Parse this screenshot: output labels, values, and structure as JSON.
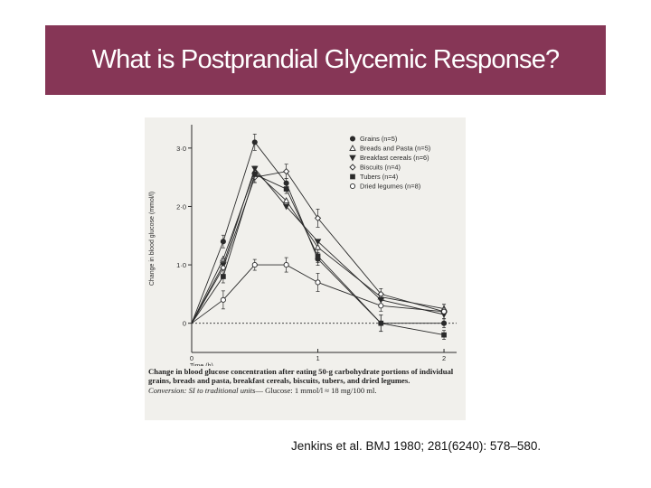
{
  "slide": {
    "title": "What is Postprandial Glycemic Response?",
    "citation": "Jenkins et al. BMJ 1980; 281(6240): 578–580."
  },
  "figure": {
    "caption": "Change in blood glucose concentration after eating 50-g carbohydrate portions of individual grains, breads and pasta, breakfast cereals, biscuits, tubers, and dried legumes.",
    "conversion_label": "Conversion: SI to traditional units",
    "conversion_text": "— Glucose: 1 mmol/l ≈ 18 mg/100 ml."
  },
  "chart_data": {
    "type": "line",
    "title": "",
    "xlabel": "Time (h)",
    "ylabel": "Change in blood glucose (mmol/l)",
    "xlim": [
      0,
      2.1
    ],
    "ylim": [
      -0.5,
      3.4
    ],
    "x_ticks": [
      {
        "value": 0,
        "label": "0"
      },
      {
        "value": 1,
        "label": "1"
      },
      {
        "value": 2,
        "label": "2"
      }
    ],
    "y_ticks": [
      {
        "value": 0,
        "label": "0"
      },
      {
        "value": 1,
        "label": "1·0"
      },
      {
        "value": 2,
        "label": "2·0"
      },
      {
        "value": 3,
        "label": "3·0"
      }
    ],
    "baseline": 0,
    "grid": false,
    "legend_position": "top-right",
    "x": [
      0,
      0.25,
      0.5,
      0.75,
      1,
      1.5,
      2
    ],
    "series": [
      {
        "name": "Grains (n=5)",
        "marker": "filled-circle",
        "values": [
          0,
          1.4,
          3.1,
          2.4,
          1.1,
          0.0,
          0.0
        ]
      },
      {
        "name": "Breads and Pasta (n=5)",
        "marker": "open-triangle",
        "values": [
          0,
          1.1,
          2.6,
          2.1,
          1.3,
          0.45,
          0.25
        ]
      },
      {
        "name": "Breakfast cereals (n=6)",
        "marker": "filled-triangle",
        "values": [
          0,
          1.0,
          2.65,
          2.0,
          1.4,
          0.4,
          0.15
        ]
      },
      {
        "name": "Biscuits (n=4)",
        "marker": "open-diamond",
        "values": [
          0,
          0.95,
          2.5,
          2.6,
          1.8,
          0.5,
          0.2
        ]
      },
      {
        "name": "Tubers (n=4)",
        "marker": "filled-square",
        "values": [
          0,
          0.8,
          2.55,
          2.3,
          1.15,
          0.0,
          -0.2
        ]
      },
      {
        "name": "Dried legumes (n=8)",
        "marker": "open-circle",
        "values": [
          0,
          0.4,
          1.0,
          1.0,
          0.7,
          0.3,
          0.2
        ]
      }
    ],
    "colors": {
      "ink": "#2a2a2a",
      "background": "#f1f0ec"
    }
  }
}
